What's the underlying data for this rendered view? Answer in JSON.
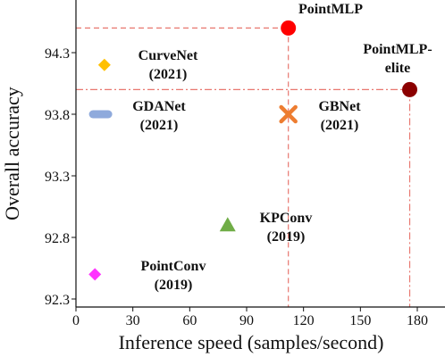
{
  "chart_data": {
    "type": "scatter",
    "xlabel": "Inference speed (samples/second)",
    "ylabel": "Overall accuracy",
    "xlim": [
      0,
      180
    ],
    "ylim": [
      92.3,
      94.7
    ],
    "x_ticks": [
      "0",
      "30",
      "60",
      "90",
      "120",
      "150",
      "180"
    ],
    "y_ticks": [
      "92.3",
      "92.8",
      "93.3",
      "93.8",
      "94.3"
    ],
    "x_tick_values": [
      0,
      30,
      60,
      90,
      120,
      150,
      180
    ],
    "y_tick_values": [
      92.3,
      92.8,
      93.3,
      93.8,
      94.3
    ],
    "grid": false,
    "legend": "none",
    "points": [
      {
        "name": "PointMLP",
        "lines": [
          "PointMLP"
        ],
        "x": 112,
        "y": 94.5,
        "marker": "circle",
        "color": "#ff0000",
        "guides": "dashed"
      },
      {
        "name": "PointMLP-elite",
        "lines": [
          "PointMLP-",
          "elite"
        ],
        "x": 176,
        "y": 94.0,
        "marker": "circle",
        "color": "#8b0000",
        "guides": "dashdot"
      },
      {
        "name": "CurveNet (2021)",
        "lines": [
          "CurveNet",
          "(2021)"
        ],
        "x": 15,
        "y": 94.2,
        "marker": "diamond",
        "color": "#ffc000"
      },
      {
        "name": "GDANet (2021)",
        "lines": [
          "GDANet",
          "(2021)"
        ],
        "x": 13,
        "y": 93.8,
        "marker": "hbar",
        "color": "#8faadc"
      },
      {
        "name": "GBNet (2021)",
        "lines": [
          "GBNet",
          "(2021)"
        ],
        "x": 112,
        "y": 93.8,
        "marker": "x",
        "color": "#ed7d31"
      },
      {
        "name": "KPConv (2019)",
        "lines": [
          "KPConv",
          "(2019)"
        ],
        "x": 80,
        "y": 92.9,
        "marker": "triangle",
        "color": "#70ad47"
      },
      {
        "name": "PointConv (2019)",
        "lines": [
          "PointConv",
          "(2019)"
        ],
        "x": 10,
        "y": 92.5,
        "marker": "diamond",
        "color": "#ff33ff"
      }
    ],
    "guide_color": "#e8776f"
  }
}
